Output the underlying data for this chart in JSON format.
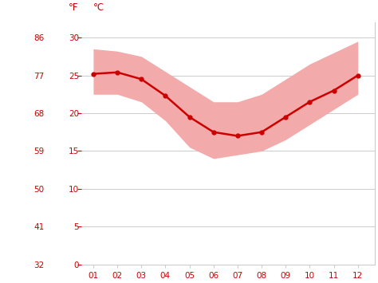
{
  "months": [
    1,
    2,
    3,
    4,
    5,
    6,
    7,
    8,
    9,
    10,
    11,
    12
  ],
  "month_labels": [
    "01",
    "02",
    "03",
    "04",
    "05",
    "06",
    "07",
    "08",
    "09",
    "10",
    "11",
    "12"
  ],
  "avg_temp": [
    25.2,
    25.4,
    24.5,
    22.3,
    19.5,
    17.5,
    17.0,
    17.5,
    19.5,
    21.5,
    23.0,
    25.0
  ],
  "band_high": [
    28.5,
    28.2,
    27.5,
    25.5,
    23.5,
    21.5,
    21.5,
    22.5,
    24.5,
    26.5,
    28.0,
    29.5
  ],
  "band_low": [
    22.5,
    22.5,
    21.5,
    19.0,
    15.5,
    14.0,
    14.5,
    15.0,
    16.5,
    18.5,
    20.5,
    22.5
  ],
  "line_color": "#cc0000",
  "band_color": "#f2aaaa",
  "background_color": "#ffffff",
  "grid_color": "#cccccc",
  "axis_color": "#cc0000",
  "ylabel_f": "°F",
  "ylabel_c": "°C",
  "yticks_c": [
    0,
    5,
    10,
    15,
    20,
    25,
    30
  ],
  "yticks_f": [
    32,
    41,
    50,
    59,
    68,
    77,
    86
  ],
  "ylim_c": [
    0,
    32
  ],
  "xlim": [
    0.5,
    12.7
  ]
}
